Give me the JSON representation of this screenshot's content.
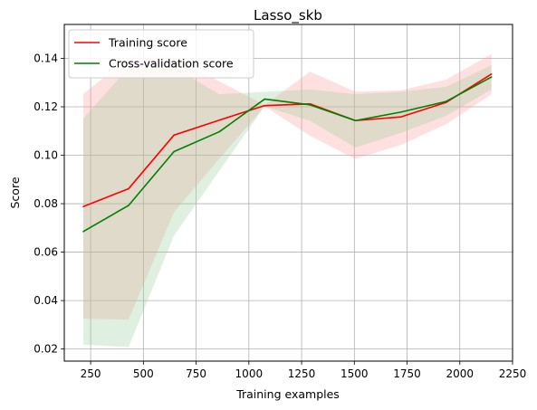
{
  "chart_data": {
    "type": "line",
    "title": "Lasso_skb",
    "xlabel": "Training examples",
    "ylabel": "Score",
    "xlim": [
      125,
      2250
    ],
    "ylim": [
      0.015,
      0.154
    ],
    "xticks": [
      250,
      500,
      750,
      1000,
      1250,
      1500,
      1750,
      2000,
      2250
    ],
    "yticks": [
      0.02,
      0.04,
      0.06,
      0.08,
      0.1,
      0.12,
      0.14
    ],
    "ytick_labels": [
      "0.02",
      "0.04",
      "0.06",
      "0.08",
      "0.10",
      "0.12",
      "0.14"
    ],
    "grid": true,
    "legend_position": "top-left",
    "x": [
      215,
      430,
      645,
      860,
      1075,
      1290,
      1505,
      1720,
      1935,
      2150
    ],
    "series": [
      {
        "name": "Training score",
        "color": "#ff0000",
        "band_color": "#ff9999",
        "values": [
          0.0788,
          0.0862,
          0.1083,
          0.1145,
          0.1205,
          0.1212,
          0.1143,
          0.1158,
          0.1218,
          0.1335
        ],
        "band_upper": [
          0.1253,
          0.1402,
          0.1402,
          0.1305,
          0.1208,
          0.1345,
          0.1262,
          0.1268,
          0.1312,
          0.1418
        ],
        "band_lower": [
          0.0325,
          0.0322,
          0.0765,
          0.0985,
          0.1202,
          0.108,
          0.0985,
          0.1042,
          0.1128,
          0.1252
        ]
      },
      {
        "name": "Cross-validation score",
        "color": "#008000",
        "band_color": "#99cc99",
        "values": [
          0.0685,
          0.0793,
          0.1015,
          0.1097,
          0.1232,
          0.1208,
          0.1143,
          0.1178,
          0.1222,
          0.1323
        ],
        "band_upper": [
          0.1152,
          0.1362,
          0.1362,
          0.1252,
          0.1262,
          0.1272,
          0.1252,
          0.1262,
          0.1282,
          0.1372
        ],
        "band_lower": [
          0.0218,
          0.0208,
          0.0668,
          0.0935,
          0.1202,
          0.1142,
          0.1032,
          0.1092,
          0.1162,
          0.1272
        ]
      }
    ]
  }
}
